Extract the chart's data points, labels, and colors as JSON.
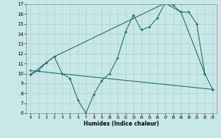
{
  "xlabel": "Humidex (Indice chaleur)",
  "xlim": [
    -0.5,
    23.5
  ],
  "ylim": [
    6,
    17
  ],
  "xticks": [
    0,
    1,
    2,
    3,
    4,
    5,
    6,
    7,
    8,
    9,
    10,
    11,
    12,
    13,
    14,
    15,
    16,
    17,
    18,
    19,
    20,
    21,
    22,
    23
  ],
  "yticks": [
    6,
    7,
    8,
    9,
    10,
    11,
    12,
    13,
    14,
    15,
    16,
    17
  ],
  "bg_color": "#c8e8e8",
  "grid_color": "#b0d4d4",
  "line_color": "#1a6b6b",
  "line1_x": [
    0,
    1,
    2,
    3,
    4,
    5,
    6,
    7,
    8,
    9,
    10,
    11,
    12,
    13,
    14,
    15,
    16,
    17,
    18,
    19,
    20,
    21,
    22,
    23
  ],
  "line1_y": [
    9.9,
    10.3,
    11.1,
    11.7,
    10.0,
    9.5,
    7.3,
    6.0,
    7.9,
    9.3,
    10.0,
    11.6,
    14.2,
    15.9,
    14.4,
    14.7,
    15.6,
    17.1,
    16.9,
    16.2,
    16.2,
    15.0,
    10.0,
    8.4
  ],
  "line2_x": [
    0,
    3,
    17,
    19,
    22
  ],
  "line2_y": [
    9.9,
    11.7,
    17.1,
    16.2,
    10.0
  ],
  "line3_x": [
    0,
    23
  ],
  "line3_y": [
    10.3,
    8.4
  ],
  "marker": "+"
}
